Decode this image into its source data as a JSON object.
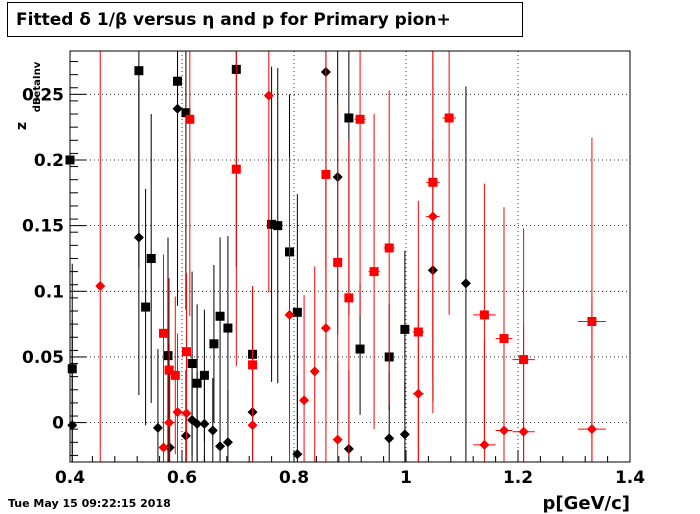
{
  "title": "Fitted δ 1/β versus η and p for Primary pion+",
  "timestamp": "Tue May 15 09:22:15 2018",
  "chart_data": {
    "type": "scatter",
    "title": "Fitted δ 1/β versus η and p for Primary pion+",
    "xlabel": "p[GeV/c]",
    "ylabel": "z_dBetaInv",
    "ylabel_main": "z",
    "ylabel_sub": "dBetaInv",
    "xlim": [
      0.4,
      1.4
    ],
    "ylim": [
      -0.03,
      0.283
    ],
    "grid": true,
    "xticks": [
      0.4,
      0.6,
      0.8,
      1,
      1.2,
      1.4
    ],
    "xtick_labels": [
      "0.4",
      "0.6",
      "0.8",
      "1",
      "1.2",
      "1.4"
    ],
    "yticks": [
      0,
      0.05,
      0.1,
      0.15,
      0.2,
      0.25
    ],
    "ytick_labels": [
      "0",
      "0.05",
      "0.1",
      "0.15",
      "0.2",
      "0.25"
    ],
    "series": [
      {
        "color": "#000000",
        "marker": "square",
        "points": [
          {
            "x": 0.4,
            "y": 0.2,
            "ey": 0.08,
            "ex": 0.003
          },
          {
            "x": 0.404,
            "y": 0.041,
            "ey": 0.08,
            "ex": 0.004
          },
          {
            "x": 0.523,
            "y": 0.268,
            "ey": 0.15,
            "ex": 0.005
          },
          {
            "x": 0.535,
            "y": 0.088,
            "ey": 0.09,
            "ex": 0.004
          },
          {
            "x": 0.545,
            "y": 0.125,
            "ey": 0.11,
            "ex": 0.004
          },
          {
            "x": 0.575,
            "y": 0.051,
            "ey": 0.09,
            "ex": 0.004
          },
          {
            "x": 0.592,
            "y": 0.26,
            "ey": 0.15,
            "ex": 0.004
          },
          {
            "x": 0.607,
            "y": 0.236,
            "ey": 0.15,
            "ex": 0.004
          },
          {
            "x": 0.618,
            "y": 0.045,
            "ey": 0.07,
            "ex": 0.004
          },
          {
            "x": 0.627,
            "y": 0.03,
            "ey": 0.06,
            "ex": 0.004
          },
          {
            "x": 0.64,
            "y": 0.036,
            "ey": 0.05,
            "ex": 0.004
          },
          {
            "x": 0.657,
            "y": 0.06,
            "ey": 0.06,
            "ex": 0.004
          },
          {
            "x": 0.668,
            "y": 0.081,
            "ey": 0.06,
            "ex": 0.004
          },
          {
            "x": 0.682,
            "y": 0.072,
            "ey": 0.07,
            "ex": 0.004
          },
          {
            "x": 0.697,
            "y": 0.269,
            "ey": 0.15,
            "ex": 0.004
          },
          {
            "x": 0.726,
            "y": 0.052,
            "ey": 0.05,
            "ex": 0.004
          },
          {
            "x": 0.76,
            "y": 0.151,
            "ey": 0.12,
            "ex": 0.005
          },
          {
            "x": 0.771,
            "y": 0.15,
            "ey": 0.12,
            "ex": 0.005
          },
          {
            "x": 0.792,
            "y": 0.13,
            "ey": 0.12,
            "ex": 0.005
          },
          {
            "x": 0.806,
            "y": 0.084,
            "ey": 0.09,
            "ex": 0.006
          },
          {
            "x": 0.898,
            "y": 0.232,
            "ey": 0.15,
            "ex": 0.006
          },
          {
            "x": 0.918,
            "y": 0.056,
            "ey": 0.05,
            "ex": 0.006
          },
          {
            "x": 0.97,
            "y": 0.05,
            "ey": 0.04,
            "ex": 0.007
          },
          {
            "x": 0.998,
            "y": 0.071,
            "ey": 0.06,
            "ex": 0.008
          }
        ]
      },
      {
        "color": "#000000",
        "marker": "diamond",
        "points": [
          {
            "x": 0.404,
            "y": -0.002,
            "ey": 0.08,
            "ex": 0.004
          },
          {
            "x": 0.523,
            "y": 0.141,
            "ey": 0.12,
            "ex": 0.005
          },
          {
            "x": 0.557,
            "y": -0.004,
            "ey": 0.06,
            "ex": 0.004
          },
          {
            "x": 0.578,
            "y": -0.019,
            "ey": 0.06,
            "ex": 0.004
          },
          {
            "x": 0.592,
            "y": 0.239,
            "ey": 0.15,
            "ex": 0.004
          },
          {
            "x": 0.607,
            "y": -0.01,
            "ey": 0.05,
            "ex": 0.004
          },
          {
            "x": 0.618,
            "y": 0.002,
            "ey": 0.05,
            "ex": 0.004
          },
          {
            "x": 0.627,
            "y": -0.001,
            "ey": 0.04,
            "ex": 0.004
          },
          {
            "x": 0.64,
            "y": -0.001,
            "ey": 0.04,
            "ex": 0.004
          },
          {
            "x": 0.655,
            "y": -0.006,
            "ey": 0.04,
            "ex": 0.004
          },
          {
            "x": 0.668,
            "y": -0.018,
            "ey": 0.04,
            "ex": 0.004
          },
          {
            "x": 0.682,
            "y": -0.015,
            "ey": 0.04,
            "ex": 0.004
          },
          {
            "x": 0.726,
            "y": 0.008,
            "ey": 0.05,
            "ex": 0.004
          },
          {
            "x": 0.806,
            "y": -0.024,
            "ey": 0.06,
            "ex": 0.005
          },
          {
            "x": 0.857,
            "y": 0.267,
            "ey": 0.15,
            "ex": 0.006
          },
          {
            "x": 0.878,
            "y": 0.187,
            "ey": 0.12,
            "ex": 0.006
          },
          {
            "x": 0.898,
            "y": -0.02,
            "ey": 0.06,
            "ex": 0.006
          },
          {
            "x": 0.97,
            "y": -0.012,
            "ey": 0.05,
            "ex": 0.006
          },
          {
            "x": 0.998,
            "y": -0.009,
            "ey": 0.04,
            "ex": 0.006
          },
          {
            "x": 1.048,
            "y": 0.116,
            "ey": 0.1,
            "ex": 0.008
          },
          {
            "x": 1.107,
            "y": 0.106,
            "ey": 0.15,
            "ex": 0.008
          }
        ]
      },
      {
        "color": "#ff0000",
        "marker": "square",
        "points": [
          {
            "x": 0.567,
            "y": 0.068,
            "ey": 0.06,
            "ex": 0.004
          },
          {
            "x": 0.577,
            "y": 0.04,
            "ey": 0.07,
            "ex": 0.004
          },
          {
            "x": 0.588,
            "y": 0.036,
            "ey": 0.06,
            "ex": 0.004
          },
          {
            "x": 0.608,
            "y": 0.054,
            "ey": 0.06,
            "ex": 0.004
          },
          {
            "x": 0.614,
            "y": 0.231,
            "ey": 0.15,
            "ex": 0.004
          },
          {
            "x": 0.697,
            "y": 0.193,
            "ey": 0.15,
            "ex": 0.004
          },
          {
            "x": 0.726,
            "y": 0.044,
            "ey": 0.06,
            "ex": 0.004
          },
          {
            "x": 0.857,
            "y": 0.189,
            "ey": 0.15,
            "ex": 0.006
          },
          {
            "x": 0.878,
            "y": 0.122,
            "ey": 0.12,
            "ex": 0.006
          },
          {
            "x": 0.898,
            "y": 0.095,
            "ey": 0.12,
            "ex": 0.006
          },
          {
            "x": 0.918,
            "y": 0.231,
            "ey": 0.15,
            "ex": 0.01
          },
          {
            "x": 0.943,
            "y": 0.115,
            "ey": 0.12,
            "ex": 0.01
          },
          {
            "x": 0.97,
            "y": 0.133,
            "ey": 0.12,
            "ex": 0.01
          },
          {
            "x": 1.022,
            "y": 0.069,
            "ey": 0.1,
            "ex": 0.01
          },
          {
            "x": 1.048,
            "y": 0.183,
            "ey": 0.15,
            "ex": 0.012
          },
          {
            "x": 1.077,
            "y": 0.232,
            "ey": 0.15,
            "ex": 0.012
          },
          {
            "x": 1.14,
            "y": 0.082,
            "ey": 0.1,
            "ex": 0.02
          },
          {
            "x": 1.175,
            "y": 0.064,
            "ey": 0.1,
            "ex": 0.015
          },
          {
            "x": 1.21,
            "y": 0.048,
            "ey": 0.1,
            "ex": 0.02
          },
          {
            "x": 1.332,
            "y": 0.077,
            "ey": 0.14,
            "ex": 0.025
          }
        ]
      },
      {
        "color": "#ff0000",
        "marker": "diamond",
        "points": [
          {
            "x": 0.454,
            "y": 0.104,
            "ey": 0.2,
            "ex": 0.004
          },
          {
            "x": 0.567,
            "y": -0.019,
            "ey": 0.06,
            "ex": 0.004
          },
          {
            "x": 0.577,
            "y": 0.0,
            "ey": 0.06,
            "ex": 0.004
          },
          {
            "x": 0.592,
            "y": 0.008,
            "ey": 0.06,
            "ex": 0.004
          },
          {
            "x": 0.608,
            "y": 0.007,
            "ey": 0.06,
            "ex": 0.004
          },
          {
            "x": 0.726,
            "y": -0.002,
            "ey": 0.06,
            "ex": 0.004
          },
          {
            "x": 0.755,
            "y": 0.249,
            "ey": 0.15,
            "ex": 0.005
          },
          {
            "x": 0.792,
            "y": 0.082,
            "ey": 0.12,
            "ex": 0.005
          },
          {
            "x": 0.818,
            "y": 0.017,
            "ey": 0.08,
            "ex": 0.005
          },
          {
            "x": 0.837,
            "y": 0.039,
            "ey": 0.08,
            "ex": 0.005
          },
          {
            "x": 0.857,
            "y": 0.072,
            "ey": 0.12,
            "ex": 0.006
          },
          {
            "x": 0.878,
            "y": -0.013,
            "ey": 0.06,
            "ex": 0.006
          },
          {
            "x": 1.022,
            "y": 0.022,
            "ey": 0.08,
            "ex": 0.01
          },
          {
            "x": 1.048,
            "y": 0.157,
            "ey": 0.15,
            "ex": 0.012
          },
          {
            "x": 1.14,
            "y": -0.017,
            "ey": 0.08,
            "ex": 0.02
          },
          {
            "x": 1.175,
            "y": -0.006,
            "ey": 0.08,
            "ex": 0.015
          },
          {
            "x": 1.21,
            "y": -0.007,
            "ey": 0.08,
            "ex": 0.02
          },
          {
            "x": 1.332,
            "y": -0.005,
            "ey": 0.1,
            "ex": 0.025
          }
        ]
      }
    ]
  }
}
